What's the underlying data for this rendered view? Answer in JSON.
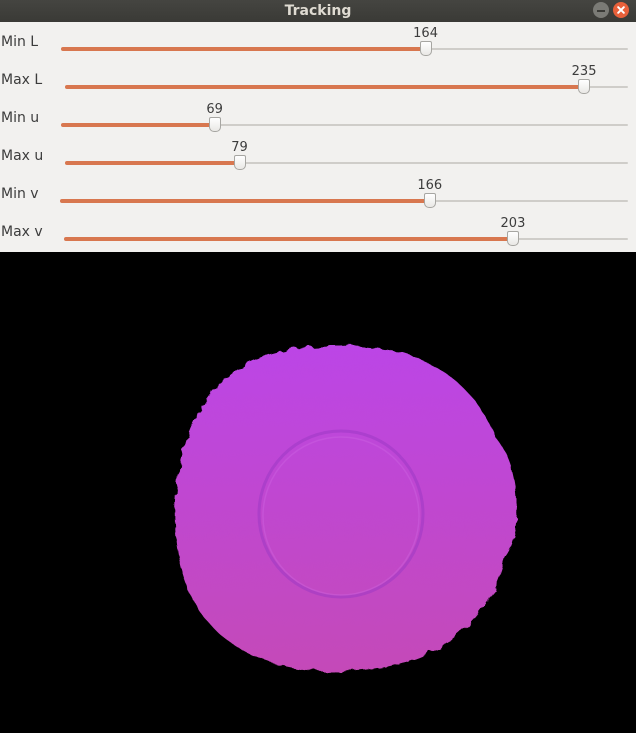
{
  "window": {
    "title": "Tracking"
  },
  "sliders": [
    {
      "label": "Min L",
      "value": "164",
      "fraction": 0.643
    },
    {
      "label": "Max L",
      "value": "235",
      "fraction": 0.922
    },
    {
      "label": "Min u",
      "value": "69",
      "fraction": 0.271
    },
    {
      "label": "Max u",
      "value": "79",
      "fraction": 0.31
    },
    {
      "label": "Min v",
      "value": "166",
      "fraction": 0.651
    },
    {
      "label": "Max v",
      "value": "203",
      "fraction": 0.796
    }
  ],
  "colors": {
    "slider_fill": "#d8774f",
    "blob_top": "#bc45e6",
    "blob_bottom": "#c449b8"
  }
}
